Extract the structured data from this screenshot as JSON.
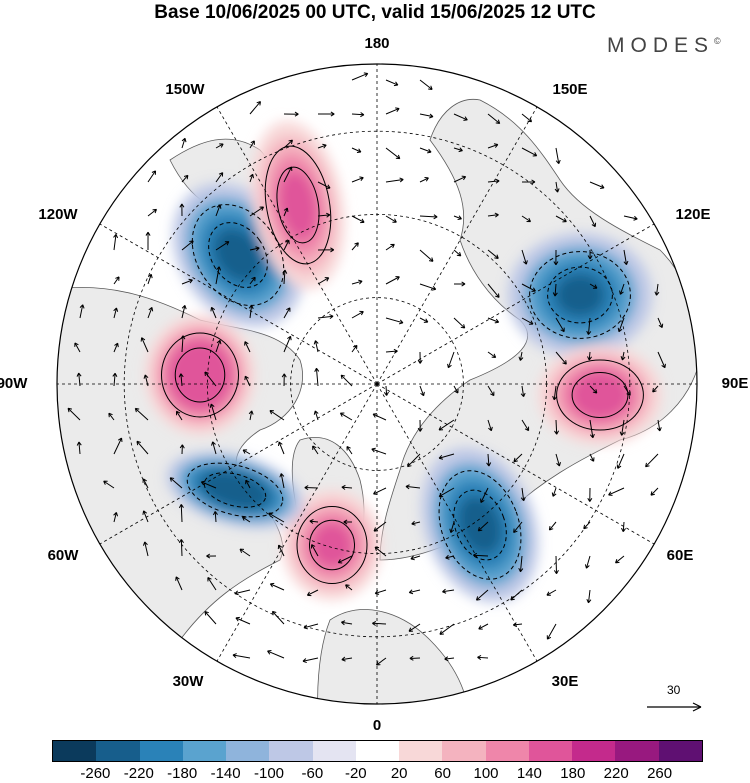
{
  "title": "Base 10/06/2025 00 UTC, valid 15/06/2025 12 UTC",
  "brand": "MODES",
  "brand_mark": "©",
  "longitude_labels": [
    "180",
    "150E",
    "120E",
    "90E",
    "60E",
    "30E",
    "0",
    "30W",
    "60W",
    "90W",
    "120W",
    "150W"
  ],
  "reference_vector": {
    "label": "30"
  },
  "colorbar": {
    "ticks": [
      "-260",
      "-220",
      "-180",
      "-140",
      "-100",
      "-60",
      "-20",
      "20",
      "60",
      "100",
      "140",
      "180",
      "220",
      "260"
    ],
    "colors": [
      "#0b3a5c",
      "#175e8c",
      "#2a82b8",
      "#5aa3cf",
      "#8fb4dc",
      "#bec8e6",
      "#e4e4f2",
      "#ffffff",
      "#f8d8d8",
      "#f4b3bf",
      "#ef86aa",
      "#e0559a",
      "#c42a8c",
      "#98197f",
      "#5f1072"
    ]
  },
  "colors": {
    "land_shade": "#ebebeb",
    "coast": "#5a5a5a",
    "contour": "#000000",
    "grid": "#000000"
  },
  "field_anomalies": [
    {
      "label": "negative-north-pacific",
      "sign": -1,
      "intensity": 0.9
    },
    {
      "label": "positive-bering",
      "sign": 1,
      "intensity": 0.85
    },
    {
      "label": "negative-east-siberia",
      "sign": -1,
      "intensity": 0.95
    },
    {
      "label": "positive-central-asia",
      "sign": 1,
      "intensity": 0.75
    },
    {
      "label": "negative-scandinavia",
      "sign": -1,
      "intensity": 0.9
    },
    {
      "label": "positive-north-atlantic",
      "sign": 1,
      "intensity": 0.85
    },
    {
      "label": "negative-labrador",
      "sign": -1,
      "intensity": 0.7
    },
    {
      "label": "positive-central-canada",
      "sign": 1,
      "intensity": 0.6
    }
  ]
}
